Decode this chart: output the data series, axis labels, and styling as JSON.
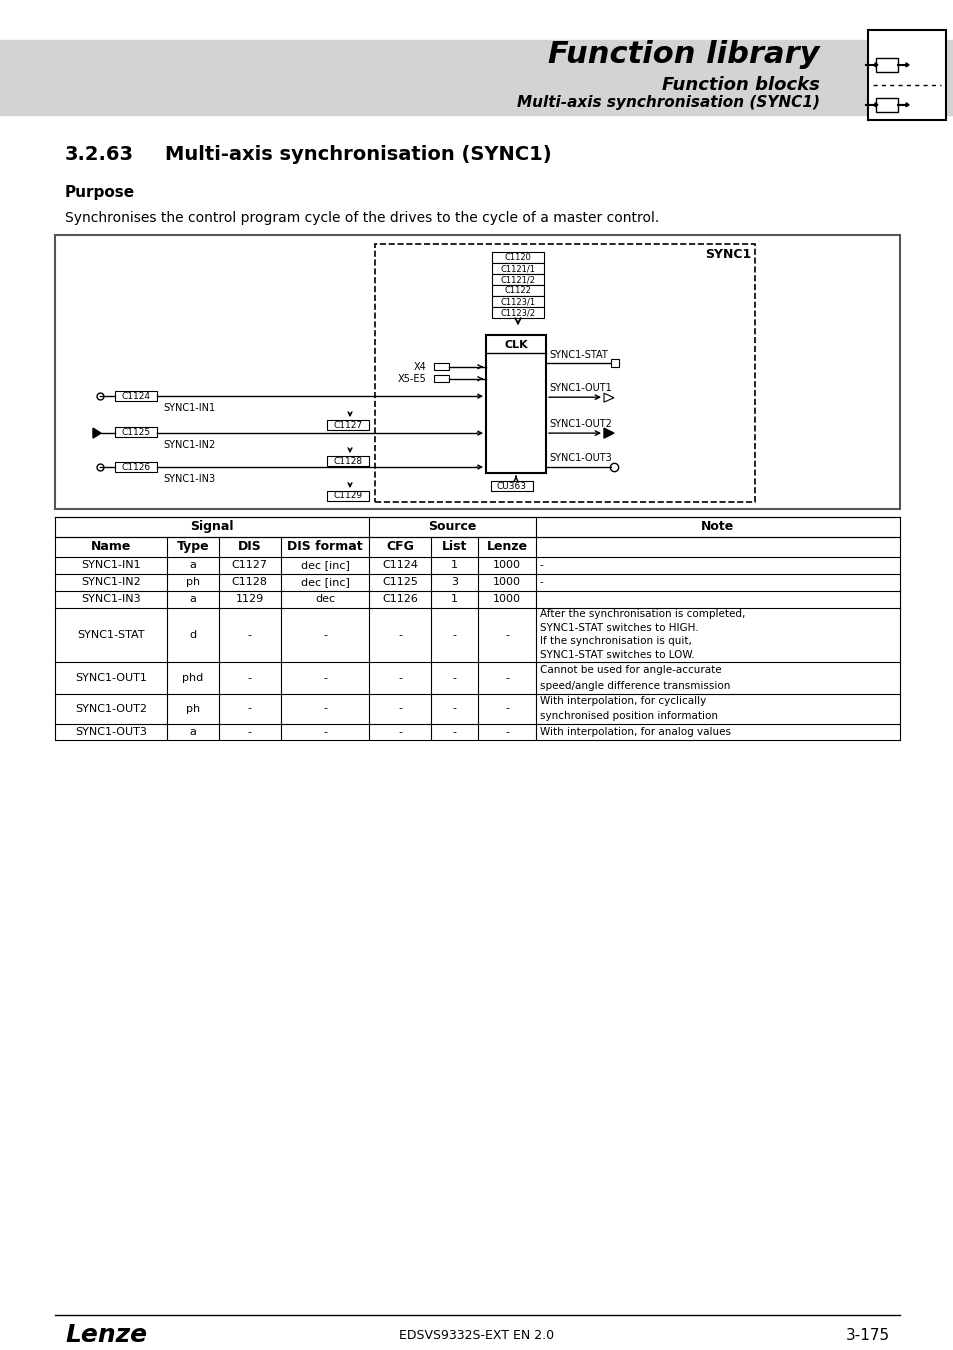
{
  "page_bg": "#ffffff",
  "header_bg": "#d3d3d3",
  "header_title": "Function library",
  "header_sub1": "Function blocks",
  "header_sub2": "Multi-axis synchronisation (SYNC1)",
  "section_num": "3.2.63",
  "section_title": "Multi-axis synchronisation (SYNC1)",
  "purpose_label": "Purpose",
  "purpose_text": "Synchronises the control program cycle of the drives to the cycle of a master control.",
  "footer_left": "Lenze",
  "footer_center": "EDSVS9332S-EXT EN 2.0",
  "footer_right": "3-175",
  "table_rows": [
    [
      "SYNC1-IN1",
      "a",
      "C1127",
      "dec [inc]",
      "C1124",
      "1",
      "1000",
      "-"
    ],
    [
      "SYNC1-IN2",
      "ph",
      "C1128",
      "dec [inc]",
      "C1125",
      "3",
      "1000",
      "-"
    ],
    [
      "SYNC1-IN3",
      "a",
      "1129",
      "dec",
      "C1126",
      "1",
      "1000",
      ""
    ],
    [
      "SYNC1-STAT",
      "d",
      "-",
      "-",
      "-",
      "-",
      "-",
      "After the synchronisation is completed,\nSYNC1-STAT switches to HIGH.\nIf the synchronisation is quit,\nSYNC1-STAT switches to LOW."
    ],
    [
      "SYNC1-OUT1",
      "phd",
      "-",
      "-",
      "-",
      "-",
      "-",
      "Cannot be used for angle-accurate\nspeed/angle difference transmission"
    ],
    [
      "SYNC1-OUT2",
      "ph",
      "-",
      "-",
      "-",
      "-",
      "-",
      "With interpolation, for cyclically\nsynchronised position information"
    ],
    [
      "SYNC1-OUT3",
      "a",
      "-",
      "-",
      "-",
      "-",
      "-",
      "With interpolation, for analog values"
    ]
  ],
  "diagram_codes_top": [
    "C1120",
    "C1121/1",
    "C1121/2",
    "C1122",
    "C1123/1",
    "C1123/2"
  ],
  "diagram_block_label": "SYNC1",
  "diagram_clk_label": "CLK",
  "diagram_cu_label": "CU363"
}
